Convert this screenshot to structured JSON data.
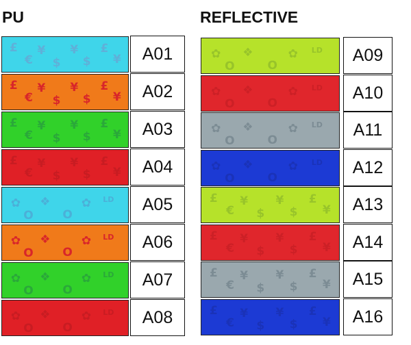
{
  "sections": [
    {
      "title": "PU",
      "items": [
        {
          "code": "A01",
          "color": "#3fd5ea",
          "pattern": "currency",
          "symbols": [
            "£",
            "€",
            "¥",
            "$",
            "¥",
            "$",
            "£",
            "¥"
          ],
          "sym_color": "#5fb0d8"
        },
        {
          "code": "A02",
          "color": "#f07a1a",
          "pattern": "currency",
          "symbols": [
            "£",
            "€",
            "¥",
            "$",
            "¥",
            "$",
            "£",
            "¥"
          ],
          "sym_color": "#d8262a"
        },
        {
          "code": "A03",
          "color": "#31d12a",
          "pattern": "currency",
          "symbols": [
            "£",
            "€",
            "¥",
            "$",
            "¥",
            "$",
            "£",
            "¥"
          ],
          "sym_color": "#2aa83a"
        },
        {
          "code": "A04",
          "color": "#e02026",
          "pattern": "currency",
          "symbols": [
            "£",
            "€",
            "¥",
            "$",
            "¥",
            "$",
            "£",
            "¥"
          ],
          "sym_color": "#c81c22"
        },
        {
          "code": "A05",
          "color": "#3fd5ea",
          "pattern": "shapes",
          "symbols": [
            "✿",
            "O",
            "❖",
            "O",
            "✿",
            "LD"
          ],
          "sym_color": "#4bb0d8"
        },
        {
          "code": "A06",
          "color": "#f07a1a",
          "pattern": "shapes",
          "symbols": [
            "✿",
            "O",
            "❖",
            "O",
            "✿",
            "LD"
          ],
          "sym_color": "#d8262a"
        },
        {
          "code": "A07",
          "color": "#31d12a",
          "pattern": "shapes",
          "symbols": [
            "✿",
            "O",
            "❖",
            "O",
            "✿",
            "LD"
          ],
          "sym_color": "#2aa83a"
        },
        {
          "code": "A08",
          "color": "#e02026",
          "pattern": "shapes",
          "symbols": [
            "✿",
            "O",
            "❖",
            "O",
            "✿",
            "LD"
          ],
          "sym_color": "#c81c22"
        }
      ]
    },
    {
      "title": "REFLECTIVE",
      "items": [
        {
          "code": "A09",
          "color": "#b6e22a",
          "pattern": "shapes",
          "symbols": [
            "✿",
            "O",
            "❖",
            "O",
            "✿",
            "LD"
          ],
          "sym_color": "#98c42a"
        },
        {
          "code": "A10",
          "color": "#e0262c",
          "pattern": "shapes",
          "symbols": [
            "✿",
            "O",
            "❖",
            "O",
            "✿",
            "LD"
          ],
          "sym_color": "#cc2026"
        },
        {
          "code": "A11",
          "color": "#9aa8ae",
          "pattern": "shapes",
          "symbols": [
            "✿",
            "O",
            "❖",
            "O",
            "✿",
            "LD"
          ],
          "sym_color": "#7c8c94"
        },
        {
          "code": "A12",
          "color": "#1c3ad4",
          "pattern": "shapes",
          "symbols": [
            "✿",
            "O",
            "❖",
            "O",
            "✿",
            "LD"
          ],
          "sym_color": "#1a32b8"
        },
        {
          "code": "A13",
          "color": "#b6e22a",
          "pattern": "currency",
          "symbols": [
            "£",
            "€",
            "¥",
            "$",
            "¥",
            "$",
            "£",
            "¥"
          ],
          "sym_color": "#98c42a"
        },
        {
          "code": "A14",
          "color": "#e0262c",
          "pattern": "currency",
          "symbols": [
            "£",
            "€",
            "¥",
            "$",
            "¥",
            "$",
            "£",
            "¥"
          ],
          "sym_color": "#cc2026"
        },
        {
          "code": "A15",
          "color": "#9aa8ae",
          "pattern": "currency",
          "symbols": [
            "£",
            "€",
            "¥",
            "$",
            "¥",
            "$",
            "£",
            "¥"
          ],
          "sym_color": "#7c8c94"
        },
        {
          "code": "A16",
          "color": "#1c3ad4",
          "pattern": "currency",
          "symbols": [
            "£",
            "€",
            "¥",
            "$",
            "¥",
            "$",
            "£",
            "¥"
          ],
          "sym_color": "#1a32b8"
        }
      ]
    }
  ]
}
